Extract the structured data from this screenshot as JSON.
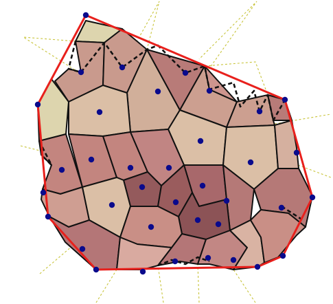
{
  "colors": {
    "hull": "#e8201c",
    "cell_edge": "#111111",
    "site": "#0a0a8c",
    "ray": "#c8c43a",
    "background": "#ffffff"
  }
}
